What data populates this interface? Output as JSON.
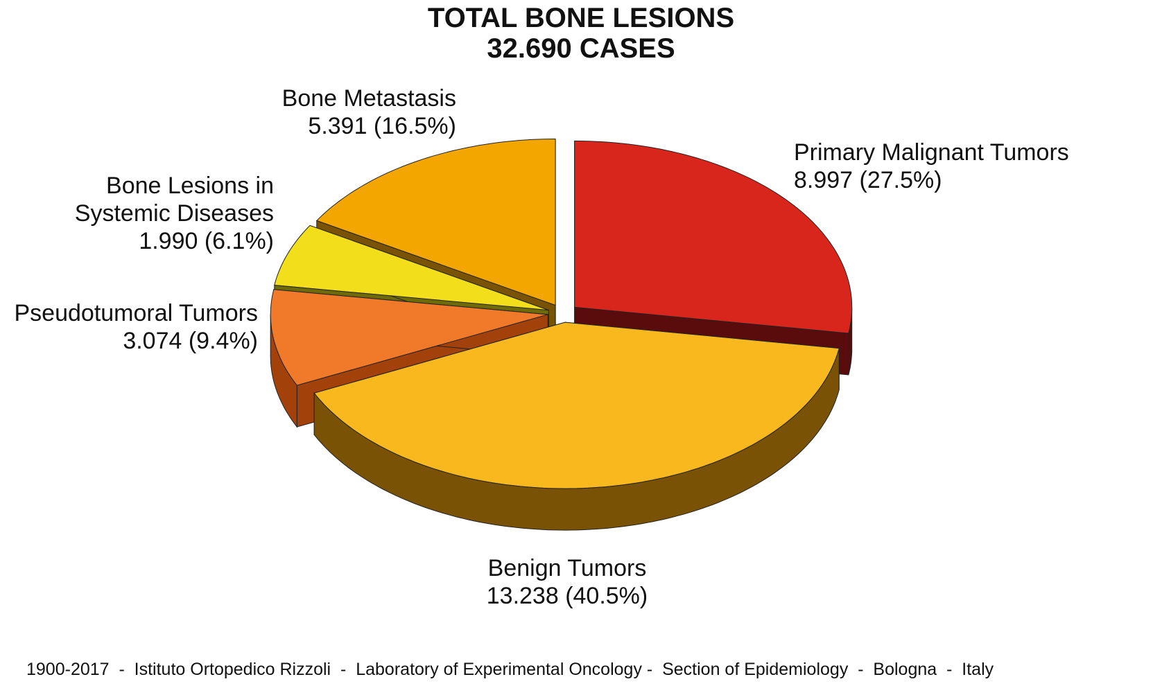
{
  "chart_data": {
    "type": "pie3d",
    "title": "TOTAL BONE LESIONS",
    "subtitle": "32.690 CASES",
    "categories": [
      "Primary Malignant Tumors",
      "Benign Tumors",
      "Pseudotumoral Tumors",
      "Bone Lesions in Systemic Diseases",
      "Bone Metastasis"
    ],
    "values": [
      27.5,
      40.5,
      9.4,
      6.1,
      16.5
    ],
    "value_labels": [
      "8.997 (27.5%)",
      "13.238 (40.5%)",
      "3.074 (9.4%)",
      "1.990 (6.1%)",
      "5.391 (16.5%)"
    ],
    "colors": [
      "#d9261c",
      "#f9b81e",
      "#f07a2a",
      "#f2de1a",
      "#f3a600"
    ],
    "side_colors": [
      "#5a0c0c",
      "#7a5206",
      "#a2420a",
      "#6e6a08",
      "#7a5300"
    ],
    "footer": "1900-2017  -  Istituto Ortopedico Rizzoli  -  Laboratory of Experimental Oncology -  Section of Epidemiology  -  Bologna  -  Italy"
  }
}
